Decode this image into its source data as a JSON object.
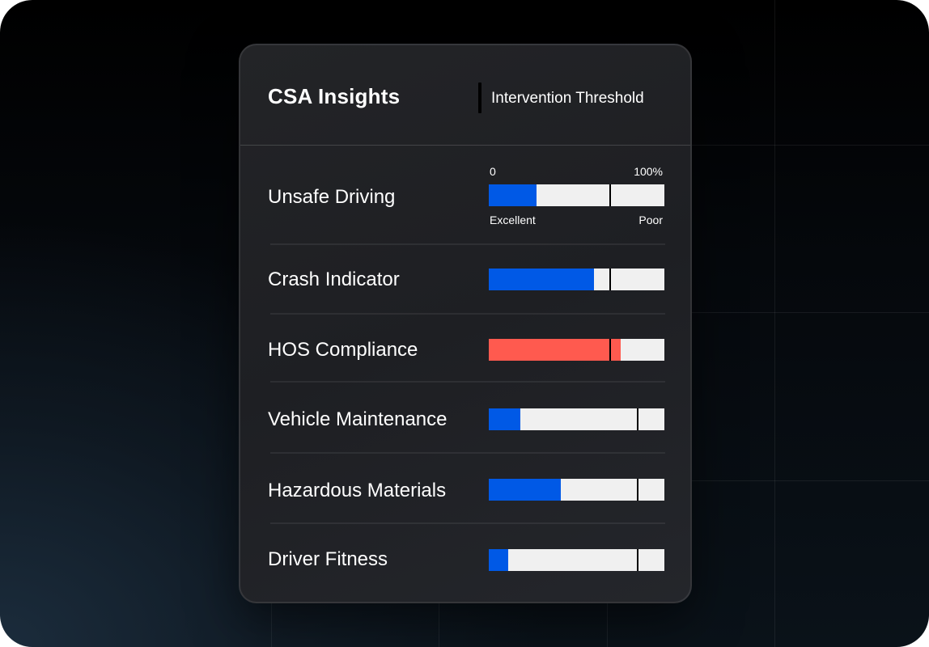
{
  "card": {
    "title": "CSA Insights",
    "threshold_label": "Intervention Threshold"
  },
  "scale": {
    "min_label": "0",
    "max_label": "100%",
    "low_label": "Excellent",
    "high_label": "Poor"
  },
  "colors": {
    "fill_ok": "#0059e6",
    "fill_alert": "#ff5a4f",
    "track": "#f0f0f0",
    "threshold": "#000000"
  },
  "categories": [
    {
      "label": "Unsafe Driving",
      "score_percent": 27,
      "threshold_percent": 69,
      "status": "ok"
    },
    {
      "label": "Crash Indicator",
      "score_percent": 60,
      "threshold_percent": 69,
      "status": "ok"
    },
    {
      "label": "HOS Compliance",
      "score_percent": 75,
      "threshold_percent": 69,
      "status": "alert"
    },
    {
      "label": "Vehicle Maintenance",
      "score_percent": 18,
      "threshold_percent": 85,
      "status": "ok"
    },
    {
      "label": "Hazardous Materials",
      "score_percent": 41,
      "threshold_percent": 85,
      "status": "ok"
    },
    {
      "label": "Driver Fitness",
      "score_percent": 11,
      "threshold_percent": 85,
      "status": "ok"
    }
  ]
}
